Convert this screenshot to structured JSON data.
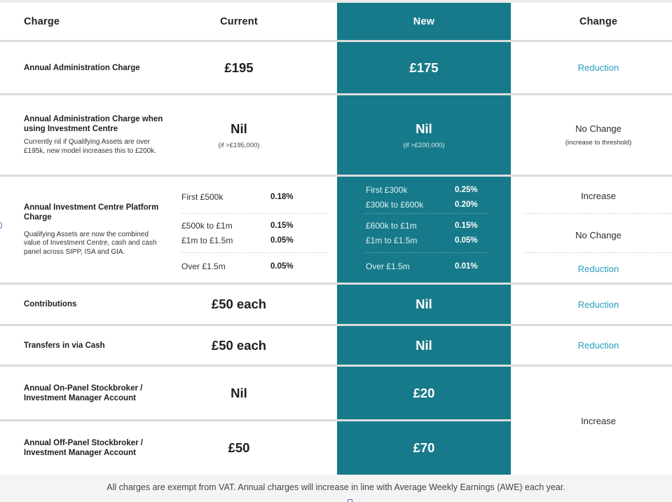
{
  "headers": {
    "charge": "Charge",
    "current": "Current",
    "new": "New",
    "change": "Change"
  },
  "rows": {
    "admin": {
      "title": "Annual Administration Charge",
      "current": "£195",
      "new": "£175",
      "change": "Reduction"
    },
    "admin_ic": {
      "title": "Annual Administration Charge when using Investment Centre",
      "subtitle": "Currently nil if Qualifying Assets are over £195k, new model increases this to £200k.",
      "current": "Nil",
      "current_note": "(if >£195,000)",
      "new": "Nil",
      "new_note": "(if >£200,000)",
      "change": "No Change",
      "change_note": "(increase to threshold)"
    },
    "platform": {
      "title": "Annual Investment Centre Platform Charge",
      "subtitle": "Qualifying Assets are now the combined value of Investment Centre, cash  and cash panel across SIPP, ISA and GIA.",
      "current_tiers": [
        {
          "band": "First £500k",
          "rate": "0.18%"
        },
        {
          "band": "£500k to £1m",
          "rate": "0.15%"
        },
        {
          "band": "£1m to £1.5m",
          "rate": "0.05%"
        },
        {
          "band": "Over £1.5m",
          "rate": "0.05%"
        }
      ],
      "new_tiers": [
        {
          "band": "First £300k",
          "rate": "0.25%"
        },
        {
          "band": "£300k to £600k",
          "rate": "0.20%"
        },
        {
          "band": "£600k to £1m",
          "rate": "0.15%"
        },
        {
          "band": "£1m to £1.5m",
          "rate": "0.05%"
        },
        {
          "band": "Over £1.5m",
          "rate": "0.01%"
        }
      ],
      "changes": [
        "Increase",
        "No Change",
        "Reduction"
      ]
    },
    "contributions": {
      "title": "Contributions",
      "current": "£50 each",
      "new": "Nil",
      "change": "Reduction"
    },
    "transfers": {
      "title": "Transfers in via Cash",
      "current": "£50 each",
      "new": "Nil",
      "change": "Reduction"
    },
    "on_panel": {
      "title": "Annual On-Panel Stockbroker / Investment Manager Account",
      "current": "Nil",
      "new": "£20"
    },
    "off_panel": {
      "title": "Annual Off-Panel Stockbroker / Investment Manager Account",
      "current": "£50",
      "new": "£70"
    },
    "broker_change": "Increase"
  },
  "footer": "All charges are exempt from VAT. Annual charges will increase in line with Average Weekly Earnings (AWE) each year.",
  "colors": {
    "new_column": "#177a8a",
    "link_blue": "#2a9cc0",
    "divider": "#dcdcdc"
  }
}
